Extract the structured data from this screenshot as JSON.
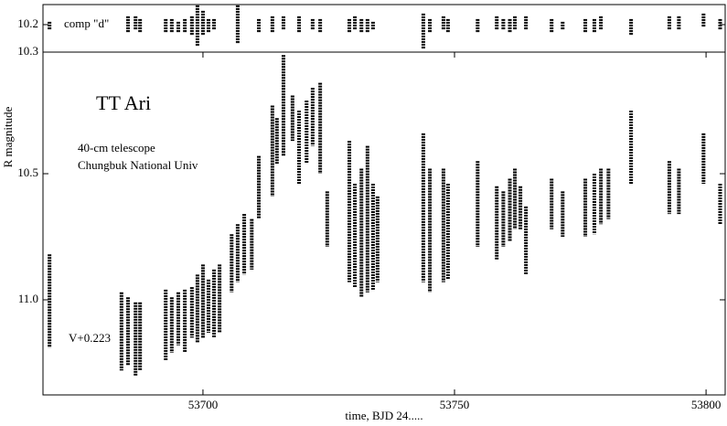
{
  "chart_data": [
    {
      "type": "range",
      "annotation": "comp \"d\"",
      "xlim": [
        53668.2,
        53803.8
      ],
      "ylim": [
        10.127,
        10.3
      ],
      "yticks": [
        10.2,
        10.3
      ],
      "color": "#000000",
      "x": [
        53669.5,
        53685.1,
        53686.6,
        53687.5,
        53692.6,
        53693.8,
        53695.1,
        53696.4,
        53697.8,
        53698.9,
        53700.0,
        53701.1,
        53702.2,
        53706.9,
        53711.1,
        53713.8,
        53716.0,
        53719.1,
        53721.8,
        53723.3,
        53729.1,
        53730.2,
        53731.5,
        53732.7,
        53733.8,
        53743.8,
        53745.1,
        53747.8,
        53748.7,
        53754.6,
        53758.4,
        53759.7,
        53761.0,
        53762.0,
        53764.2,
        53769.3,
        53771.5,
        53776.0,
        53777.8,
        53779.1,
        53785.1,
        53792.7,
        53794.6,
        53799.5,
        53802.8
      ],
      "low": [
        10.19,
        10.17,
        10.17,
        10.18,
        10.18,
        10.18,
        10.19,
        10.18,
        10.17,
        10.13,
        10.15,
        10.18,
        10.18,
        10.13,
        10.18,
        10.17,
        10.17,
        10.17,
        10.18,
        10.18,
        10.18,
        10.17,
        10.18,
        10.18,
        10.19,
        10.16,
        10.18,
        10.17,
        10.18,
        10.18,
        10.17,
        10.18,
        10.18,
        10.17,
        10.17,
        10.18,
        10.19,
        10.18,
        10.18,
        10.17,
        10.18,
        10.17,
        10.17,
        10.16,
        10.18
      ],
      "high": [
        10.22,
        10.23,
        10.22,
        10.23,
        10.23,
        10.23,
        10.23,
        10.23,
        10.24,
        10.28,
        10.24,
        10.23,
        10.22,
        10.27,
        10.23,
        10.23,
        10.22,
        10.23,
        10.22,
        10.23,
        10.23,
        10.22,
        10.23,
        10.23,
        10.22,
        10.29,
        10.23,
        10.22,
        10.23,
        10.23,
        10.22,
        10.22,
        10.23,
        10.22,
        10.22,
        10.23,
        10.22,
        10.23,
        10.23,
        10.22,
        10.24,
        10.22,
        10.22,
        10.21,
        10.22
      ]
    },
    {
      "type": "range",
      "title": "TT Ari",
      "notes": [
        "40-cm telescope",
        "Chungbuk National Univ"
      ],
      "annotation": "V+0.223",
      "xlabel": "time, BJD 24.....",
      "ylabel": "R magnitude",
      "xlim": [
        53668.2,
        53803.8
      ],
      "xticks": [
        53700,
        53750,
        53800
      ],
      "ylim": [
        10.018,
        11.377
      ],
      "yticks": [
        10.5,
        {
          "value": 11,
          "label": "11.0"
        }
      ],
      "color": "#000000",
      "x": [
        53669.5,
        53683.8,
        53685.1,
        53686.6,
        53687.5,
        53692.6,
        53693.8,
        53695.1,
        53696.4,
        53697.8,
        53698.9,
        53700.0,
        53701.1,
        53702.2,
        53703.3,
        53705.7,
        53706.9,
        53708.2,
        53709.7,
        53711.1,
        53713.8,
        53714.7,
        53716.0,
        53717.8,
        53719.1,
        53720.6,
        53721.8,
        53723.3,
        53724.7,
        53729.1,
        53730.2,
        53731.5,
        53732.7,
        53733.8,
        53734.7,
        53743.8,
        53745.1,
        53747.8,
        53748.7,
        53754.6,
        53758.4,
        53759.7,
        53761.0,
        53762.0,
        53763.1,
        53764.2,
        53769.3,
        53771.5,
        53776.0,
        53777.8,
        53779.1,
        53780.6,
        53785.1,
        53792.7,
        53794.6,
        53799.5,
        53802.8
      ],
      "low": [
        10.82,
        10.97,
        10.99,
        11.01,
        11.01,
        10.96,
        10.99,
        10.97,
        10.96,
        10.95,
        10.9,
        10.86,
        10.92,
        10.88,
        10.86,
        10.74,
        10.7,
        10.66,
        10.68,
        10.43,
        10.23,
        10.28,
        10.03,
        10.19,
        10.25,
        10.21,
        10.16,
        10.14,
        10.57,
        10.37,
        10.54,
        10.48,
        10.39,
        10.54,
        10.59,
        10.34,
        10.48,
        10.48,
        10.54,
        10.45,
        10.55,
        10.57,
        10.52,
        10.48,
        10.55,
        10.63,
        10.52,
        10.57,
        10.52,
        10.5,
        10.48,
        10.48,
        10.25,
        10.45,
        10.48,
        10.34,
        10.54
      ],
      "high": [
        11.19,
        11.28,
        11.26,
        11.3,
        11.28,
        11.24,
        11.21,
        11.18,
        11.21,
        11.15,
        11.17,
        11.15,
        11.13,
        11.15,
        11.13,
        10.97,
        10.93,
        10.9,
        10.88,
        10.68,
        10.59,
        10.46,
        10.43,
        10.37,
        10.54,
        10.46,
        10.39,
        10.5,
        10.79,
        10.93,
        10.95,
        10.99,
        10.97,
        10.96,
        10.93,
        10.93,
        10.97,
        10.93,
        10.92,
        10.79,
        10.84,
        10.79,
        10.77,
        10.72,
        10.72,
        10.9,
        10.72,
        10.75,
        10.75,
        10.74,
        10.7,
        10.68,
        10.54,
        10.66,
        10.66,
        10.54,
        10.7
      ]
    }
  ]
}
